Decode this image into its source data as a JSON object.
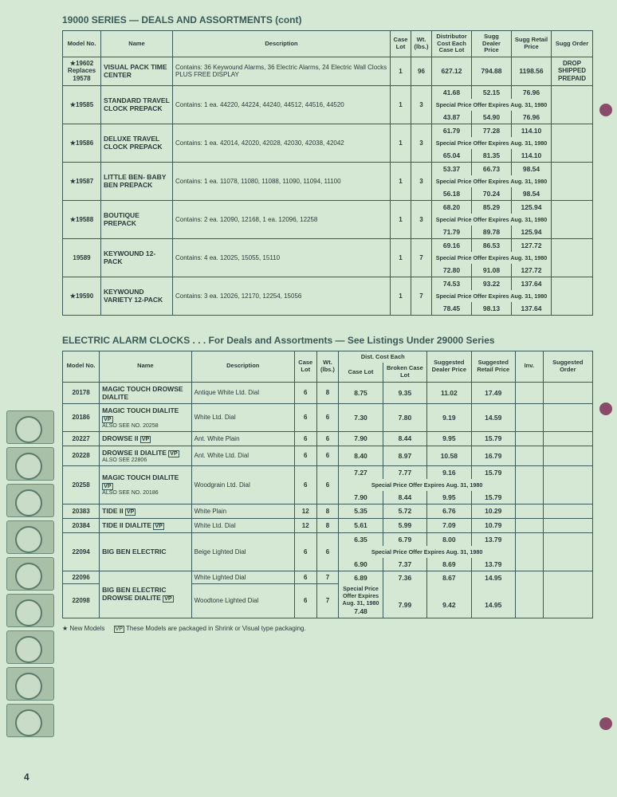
{
  "sections": {
    "s1": {
      "title": "19000 SERIES — DEALS AND ASSORTMENTS (cont)",
      "cols": {
        "model": "Model No.",
        "name": "Name",
        "desc": "Description",
        "caselot": "Case Lot",
        "wt": "Wt. (lbs.)",
        "distcost": "Distributor Cost Each Case Lot",
        "dealer": "Sugg Dealer Price",
        "retail": "Sugg Retail Price",
        "suggord": "Sugg Order"
      },
      "rows": [
        {
          "model": "★19602 Replaces 19578",
          "name": "VISUAL PACK TIME CENTER",
          "desc": "Contains: 36 Keywound Alarms, 36 Electric Alarms, 24 Electric Wall Clocks PLUS FREE DISPLAY",
          "caselot": "1",
          "wt": "96",
          "dist": "627.12",
          "dealer": "794.88",
          "retail": "1198.56",
          "suggord": "DROP SHIPPED PREPAID"
        },
        {
          "model": "★19585",
          "name": "STANDARD TRAVEL CLOCK PREPACK",
          "desc": "Contains: 1 ea. 44220, 44224, 44240, 44512, 44516, 44520",
          "caselot": "1",
          "wt": "3",
          "line1": {
            "dist": "41.68",
            "dealer": "52.15",
            "retail": "76.96"
          },
          "special": "Special Price Offer Expires Aug. 31, 1980",
          "line2": {
            "dist": "43.87",
            "dealer": "54.90",
            "retail": "76.96"
          }
        },
        {
          "model": "★19586",
          "name": "DELUXE TRAVEL CLOCK PREPACK",
          "desc": "Contains: 1 ea. 42014, 42020, 42028, 42030, 42038, 42042",
          "caselot": "1",
          "wt": "3",
          "line1": {
            "dist": "61.79",
            "dealer": "77.28",
            "retail": "114.10"
          },
          "special": "Special Price Offer Expires Aug. 31, 1980",
          "line2": {
            "dist": "65.04",
            "dealer": "81.35",
            "retail": "114.10"
          }
        },
        {
          "model": "★19587",
          "name": "LITTLE BEN- BABY BEN PREPACK",
          "desc": "Contains: 1 ea. 11078, 11080, 11088, 11090, 11094, 11100",
          "caselot": "1",
          "wt": "3",
          "line1": {
            "dist": "53.37",
            "dealer": "66.73",
            "retail": "98.54"
          },
          "special": "Special Price Offer Expires Aug. 31, 1980",
          "line2": {
            "dist": "56.18",
            "dealer": "70.24",
            "retail": "98.54"
          }
        },
        {
          "model": "★19588",
          "name": "BOUTIQUE PREPACK",
          "desc": "Contains: 2 ea. 12090, 12168, 1 ea. 12096, 12258",
          "caselot": "1",
          "wt": "3",
          "line1": {
            "dist": "68.20",
            "dealer": "85.29",
            "retail": "125.94"
          },
          "special": "Special Price Offer Expires Aug. 31, 1980",
          "line2": {
            "dist": "71.79",
            "dealer": "89.78",
            "retail": "125.94"
          }
        },
        {
          "model": "19589",
          "name": "KEYWOUND 12-PACK",
          "desc": "Contains: 4 ea. 12025, 15055, 15110",
          "caselot": "1",
          "wt": "7",
          "line1": {
            "dist": "69.16",
            "dealer": "86.53",
            "retail": "127.72"
          },
          "special": "Special Price Offer Expires Aug. 31, 1980",
          "line2": {
            "dist": "72.80",
            "dealer": "91.08",
            "retail": "127.72"
          }
        },
        {
          "model": "★19590",
          "name": "KEYWOUND VARIETY 12-PACK",
          "desc": "Contains: 3 ea. 12026, 12170, 12254, 15056",
          "caselot": "1",
          "wt": "7",
          "line1": {
            "dist": "74.53",
            "dealer": "93.22",
            "retail": "137.64"
          },
          "special": "Special Price Offer Expires Aug. 31, 1980",
          "line2": {
            "dist": "78.45",
            "dealer": "98.13",
            "retail": "137.64"
          }
        }
      ]
    },
    "s2": {
      "title": "ELECTRIC ALARM CLOCKS . . . For Deals and Assortments — See Listings Under 29000 Series",
      "cols": {
        "model": "Model No.",
        "name": "Name",
        "desc": "Description",
        "caselot": "Case Lot",
        "wt": "Wt. (lbs.)",
        "distgroup": "Dist. Cost Each",
        "case": "Case Lot",
        "broken": "Broken Case Lot",
        "dealer": "Suggested Dealer Price",
        "retail": "Suggested Retail Price",
        "inv": "Inv.",
        "suggord": "Suggested Order"
      },
      "rows": [
        {
          "model": "20178",
          "name": "MAGIC TOUCH DROWSE DIALITE",
          "desc": "Antique White Ltd. Dial",
          "caselot": "6",
          "wt": "8",
          "case": "8.75",
          "broken": "9.35",
          "dealer": "11.02",
          "retail": "17.49"
        },
        {
          "model": "20186",
          "name": "MAGIC TOUCH DIALITE",
          "vp": true,
          "sub": "Also see No. 20258",
          "desc": "White Ltd. Dial",
          "caselot": "6",
          "wt": "6",
          "case": "7.30",
          "broken": "7.80",
          "dealer": "9.19",
          "retail": "14.59"
        },
        {
          "model": "20227",
          "name": "DROWSE II",
          "vp": true,
          "desc": "Ant. White Plain",
          "caselot": "6",
          "wt": "6",
          "case": "7.90",
          "broken": "8.44",
          "dealer": "9.95",
          "retail": "15.79"
        },
        {
          "model": "20228",
          "name": "DROWSE II DIALITE",
          "vp": true,
          "sub": "Also see 22806",
          "desc": "Ant. White Ltd. Dial",
          "caselot": "6",
          "wt": "6",
          "case": "8.40",
          "broken": "8.97",
          "dealer": "10.58",
          "retail": "16.79"
        },
        {
          "model": "20258",
          "name": "MAGIC TOUCH DIALITE",
          "vp": true,
          "sub": "Also see No. 20186",
          "desc": "Woodgrain Ltd. Dial",
          "caselot": "6",
          "wt": "6",
          "line1": {
            "case": "7.27",
            "broken": "7.77",
            "dealer": "9.16",
            "retail": "15.79"
          },
          "special": "Special Price Offer Expires Aug. 31, 1980",
          "line2": {
            "case": "7.90",
            "broken": "8.44",
            "dealer": "9.95",
            "retail": "15.79"
          }
        },
        {
          "model": "20383",
          "name": "TIDE II",
          "vp": true,
          "desc": "White Plain",
          "caselot": "12",
          "wt": "8",
          "case": "5.35",
          "broken": "5.72",
          "dealer": "6.76",
          "retail": "10.29"
        },
        {
          "model": "20384",
          "name": "TIDE II DIALITE",
          "vp": true,
          "desc": "White Ltd. Dial",
          "caselot": "12",
          "wt": "8",
          "case": "5.61",
          "broken": "5.99",
          "dealer": "7.09",
          "retail": "10.79"
        },
        {
          "model": "22094",
          "name": "BIG BEN ELECTRIC",
          "desc": "Beige Lighted Dial",
          "caselot": "6",
          "wt": "6",
          "line1": {
            "case": "6.35",
            "broken": "6.79",
            "dealer": "8.00",
            "retail": "13.79"
          },
          "special": "Special Price Offer Expires Aug. 31, 1980",
          "line2": {
            "case": "6.90",
            "broken": "7.37",
            "dealer": "8.69",
            "retail": "13.79"
          }
        },
        {
          "model": "22096",
          "name": "BIG BEN ELECTRIC DROWSE DIALITE",
          "vp": true,
          "desc": "White Lighted Dial",
          "caselot": "6",
          "wt": "7",
          "line1": {
            "case": "6.89",
            "broken": "7.36",
            "dealer": "8.67",
            "retail": "14.95"
          },
          "special": "Special Price Offer Expires Aug. 31, 1980",
          "pair": true
        },
        {
          "model": "22098",
          "name": "",
          "desc": "Woodtone Lighted Dial",
          "caselot": "6",
          "wt": "7",
          "line2": {
            "case": "7.48",
            "broken": "7.99",
            "dealer": "9.42",
            "retail": "14.95"
          }
        }
      ]
    }
  },
  "footnote_star": "★ New Models",
  "footnote_vp": "These Models are packaged in Shrink or Visual type packaging.",
  "page_number": "4"
}
